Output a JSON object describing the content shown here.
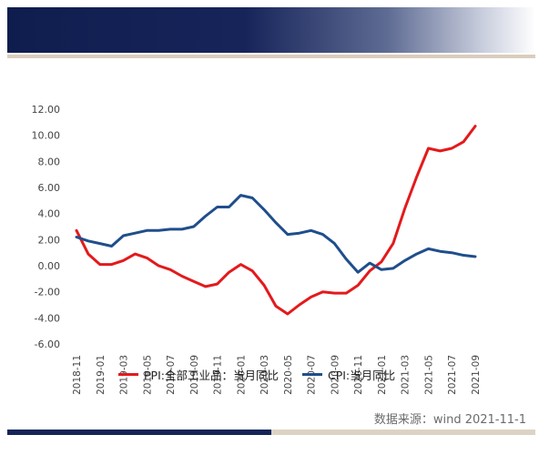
{
  "source_text": "数据来源：wind 2021-11-1",
  "colors": {
    "ppi": "#e31a1c",
    "cpi": "#1f4e8c",
    "header_navy": "#0f1d4e",
    "accent_tan": "#d9cdbd"
  },
  "chart_data": {
    "type": "line",
    "title": "",
    "xlabel": "",
    "ylabel": "",
    "ylim": [
      -6,
      12
    ],
    "yticks": [
      "12.00",
      "10.00",
      "8.00",
      "6.00",
      "4.00",
      "2.00",
      "0.00",
      "-2.00",
      "-4.00",
      "-6.00"
    ],
    "ytick_values": [
      12,
      10,
      8,
      6,
      4,
      2,
      0,
      -2,
      -4,
      -6
    ],
    "grid": false,
    "legend_position": "bottom",
    "x": [
      "2018-11",
      "2018-12",
      "2019-01",
      "2019-02",
      "2019-03",
      "2019-04",
      "2019-05",
      "2019-06",
      "2019-07",
      "2019-08",
      "2019-09",
      "2019-10",
      "2019-11",
      "2019-12",
      "2020-01",
      "2020-02",
      "2020-03",
      "2020-04",
      "2020-05",
      "2020-06",
      "2020-07",
      "2020-08",
      "2020-09",
      "2020-10",
      "2020-11",
      "2020-12",
      "2021-01",
      "2021-02",
      "2021-03",
      "2021-04",
      "2021-05",
      "2021-06",
      "2021-07",
      "2021-08",
      "2021-09"
    ],
    "xtick_labels": [
      "2018-11",
      "2019-01",
      "2019-03",
      "2019-05",
      "2019-07",
      "2019-09",
      "2019-11",
      "2020-01",
      "2020-03",
      "2020-05",
      "2020-07",
      "2020-09",
      "2020-11",
      "2021-01",
      "2021-03",
      "2021-05",
      "2021-07",
      "2021-09"
    ],
    "series": [
      {
        "name": "PPI:全部工业品：当月同比",
        "color": "#e31a1c",
        "values": [
          2.7,
          0.9,
          0.1,
          0.1,
          0.4,
          0.9,
          0.6,
          0.0,
          -0.3,
          -0.8,
          -1.2,
          -1.6,
          -1.4,
          -0.5,
          0.1,
          -0.4,
          -1.5,
          -3.1,
          -3.7,
          -3.0,
          -2.4,
          -2.0,
          -2.1,
          -2.1,
          -1.5,
          -0.4,
          0.3,
          1.7,
          4.4,
          6.8,
          9.0,
          8.8,
          9.0,
          9.5,
          10.7
        ]
      },
      {
        "name": "CPI:当月同比",
        "color": "#1f4e8c",
        "values": [
          2.2,
          1.9,
          1.7,
          1.5,
          2.3,
          2.5,
          2.7,
          2.7,
          2.8,
          2.8,
          3.0,
          3.8,
          4.5,
          4.5,
          5.4,
          5.2,
          4.3,
          3.3,
          2.4,
          2.5,
          2.7,
          2.4,
          1.7,
          0.5,
          -0.5,
          0.2,
          -0.3,
          -0.2,
          0.4,
          0.9,
          1.3,
          1.1,
          1.0,
          0.8,
          0.7
        ]
      }
    ]
  }
}
